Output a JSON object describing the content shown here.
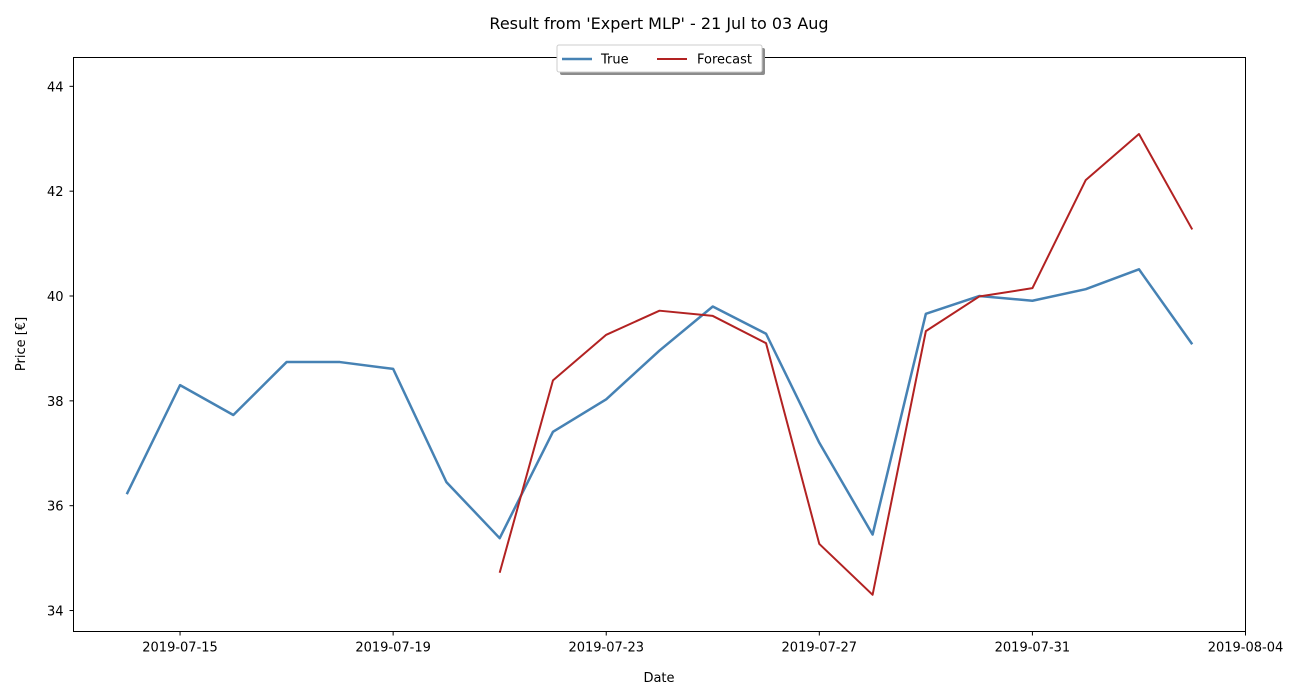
{
  "chart_data": {
    "type": "line",
    "title": "Result from 'Expert MLP' - 21 Jul to 03 Aug",
    "xlabel": "Date",
    "ylabel": "Price [€]",
    "xlim": [
      "2019-07-13",
      "2019-08-04"
    ],
    "ylim": [
      33.6,
      44.55
    ],
    "xticks": [
      "2019-07-15",
      "2019-07-19",
      "2019-07-23",
      "2019-07-27",
      "2019-07-31",
      "2019-08-04"
    ],
    "yticks": [
      34,
      36,
      38,
      40,
      42,
      44
    ],
    "grid": false,
    "legend": {
      "position": "top-center",
      "entries": [
        "True",
        "Forecast"
      ]
    },
    "series": [
      {
        "name": "True",
        "color": "#4682b4",
        "x": [
          "2019-07-14",
          "2019-07-15",
          "2019-07-16",
          "2019-07-17",
          "2019-07-18",
          "2019-07-19",
          "2019-07-20",
          "2019-07-21",
          "2019-07-22",
          "2019-07-23",
          "2019-07-24",
          "2019-07-25",
          "2019-07-26",
          "2019-07-27",
          "2019-07-28",
          "2019-07-29",
          "2019-07-30",
          "2019-07-31",
          "2019-08-01",
          "2019-08-02",
          "2019-08-03"
        ],
        "y": [
          36.22,
          38.3,
          37.73,
          38.74,
          38.74,
          38.61,
          36.45,
          35.38,
          37.41,
          38.03,
          38.96,
          39.8,
          39.28,
          37.2,
          35.45,
          39.66,
          40.0,
          39.91,
          40.13,
          40.51,
          39.08
        ]
      },
      {
        "name": "Forecast",
        "color": "#b22222",
        "x": [
          "2019-07-21",
          "2019-07-22",
          "2019-07-23",
          "2019-07-24",
          "2019-07-25",
          "2019-07-26",
          "2019-07-27",
          "2019-07-28",
          "2019-07-29",
          "2019-07-30",
          "2019-07-31",
          "2019-08-01",
          "2019-08-02",
          "2019-08-03"
        ],
        "y": [
          34.72,
          38.39,
          39.26,
          39.72,
          39.62,
          39.1,
          35.27,
          34.3,
          39.33,
          39.99,
          40.15,
          42.21,
          43.09,
          41.27
        ]
      }
    ]
  }
}
